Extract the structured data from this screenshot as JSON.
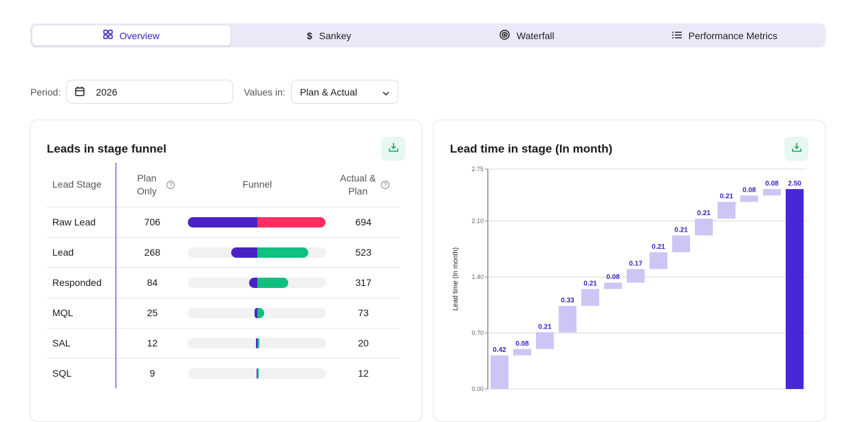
{
  "tabs": [
    {
      "label": "Overview",
      "icon": "grid-icon",
      "active": true
    },
    {
      "label": "Sankey",
      "icon": "dollar-icon"
    },
    {
      "label": "Waterfall",
      "icon": "target-icon"
    },
    {
      "label": "Performance Metrics",
      "icon": "list-icon"
    }
  ],
  "filters": {
    "period_label": "Period:",
    "period_value": "2026",
    "values_label": "Values in:",
    "values_value": "Plan & Actual"
  },
  "funnel": {
    "title": "Leads in stage funnel",
    "headers": {
      "stage": "Lead Stage",
      "plan": "Plan Only",
      "funnel": "Funnel",
      "actual": "Actual & Plan"
    },
    "colors": {
      "plan": "#4a22c4",
      "actual_raw": "#ff2d5f",
      "actual": "#10c07f"
    },
    "rows": [
      {
        "stage": "Raw Lead",
        "plan": 706,
        "actual": 694
      },
      {
        "stage": "Lead",
        "plan": 268,
        "actual": 523
      },
      {
        "stage": "Responded",
        "plan": 84,
        "actual": 317
      },
      {
        "stage": "MQL",
        "plan": 25,
        "actual": 73
      },
      {
        "stage": "SAL",
        "plan": 12,
        "actual": 20
      },
      {
        "stage": "SQL",
        "plan": 9,
        "actual": 12
      }
    ]
  },
  "chart_data": {
    "type": "waterfall",
    "title": "Lead time in stage (In month)",
    "ylabel": "Lead time (In month)",
    "ylim": [
      0,
      2.75
    ],
    "yticks": [
      "0.00",
      "0.70",
      "1.40",
      "2.10",
      "2.75"
    ],
    "grid": true,
    "values": [
      0.42,
      0.08,
      0.21,
      0.33,
      0.21,
      0.08,
      0.17,
      0.21,
      0.21,
      0.21,
      0.21,
      0.08,
      0.08
    ],
    "labels": [
      "0.42",
      "0.08",
      "0.21",
      "0.33",
      "0.21",
      "0.08",
      "0.17",
      "0.21",
      "0.21",
      "0.21",
      "0.21",
      "0.08",
      "0.08"
    ],
    "total": 2.5,
    "total_label": "2.50",
    "colors": {
      "step": "#cfc5f5",
      "total": "#4a27d6",
      "label": "#3a1fc4"
    }
  }
}
